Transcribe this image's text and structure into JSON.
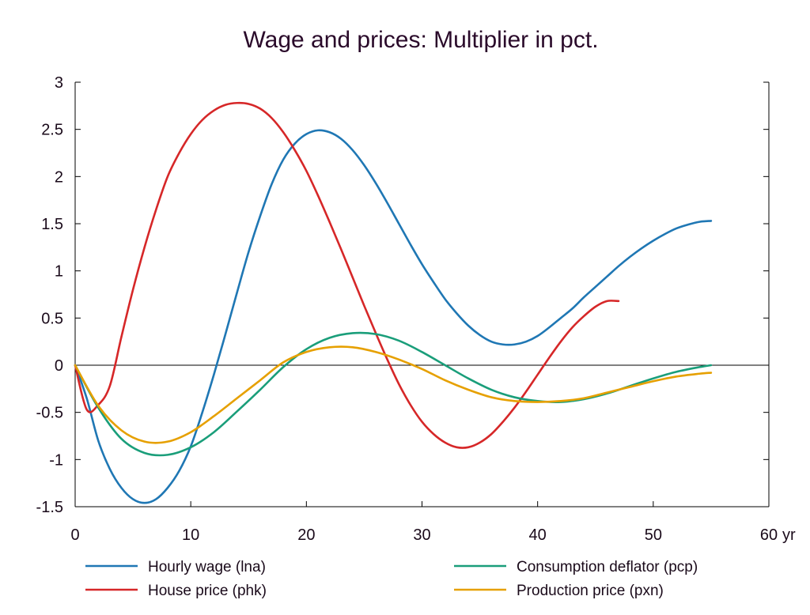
{
  "chart_data": {
    "type": "line",
    "title": "Wage and prices: Multiplier in pct.",
    "xlabel": "",
    "ylabel": "",
    "x_unit_label": "yr",
    "xlim": [
      0,
      60
    ],
    "ylim": [
      -1.5,
      3
    ],
    "x_ticks": [
      "0",
      "10",
      "20",
      "30",
      "40",
      "50",
      "60"
    ],
    "y_ticks": [
      "3",
      "2.5",
      "2",
      "1.5",
      "1",
      "0.5",
      "0",
      "-0.5",
      "-1",
      "-1.5"
    ],
    "grid": false,
    "legend_position": "bottom",
    "series": [
      {
        "name": "Hourly wage (lna)",
        "color": "#1f77b4",
        "points": [
          [
            0,
            0
          ],
          [
            1,
            -0.35
          ],
          [
            2,
            -0.8
          ],
          [
            3,
            -1.1
          ],
          [
            4,
            -1.3
          ],
          [
            5,
            -1.42
          ],
          [
            6,
            -1.46
          ],
          [
            7,
            -1.42
          ],
          [
            8,
            -1.3
          ],
          [
            9,
            -1.12
          ],
          [
            10,
            -0.86
          ],
          [
            11,
            -0.5
          ],
          [
            12,
            -0.1
          ],
          [
            13,
            0.33
          ],
          [
            14,
            0.77
          ],
          [
            15,
            1.2
          ],
          [
            16,
            1.58
          ],
          [
            17,
            1.92
          ],
          [
            18,
            2.18
          ],
          [
            19,
            2.35
          ],
          [
            20,
            2.45
          ],
          [
            21,
            2.49
          ],
          [
            22,
            2.47
          ],
          [
            23,
            2.4
          ],
          [
            24,
            2.28
          ],
          [
            25,
            2.12
          ],
          [
            26,
            1.93
          ],
          [
            27,
            1.72
          ],
          [
            28,
            1.5
          ],
          [
            29,
            1.28
          ],
          [
            30,
            1.07
          ],
          [
            31,
            0.88
          ],
          [
            32,
            0.7
          ],
          [
            33,
            0.55
          ],
          [
            34,
            0.42
          ],
          [
            35,
            0.32
          ],
          [
            36,
            0.25
          ],
          [
            37,
            0.22
          ],
          [
            38,
            0.22
          ],
          [
            39,
            0.25
          ],
          [
            40,
            0.31
          ],
          [
            41,
            0.4
          ],
          [
            42,
            0.5
          ],
          [
            43,
            0.6
          ],
          [
            44,
            0.72
          ],
          [
            45,
            0.83
          ],
          [
            46,
            0.94
          ],
          [
            47,
            1.05
          ],
          [
            48,
            1.15
          ],
          [
            49,
            1.24
          ],
          [
            50,
            1.32
          ],
          [
            51,
            1.39
          ],
          [
            52,
            1.45
          ],
          [
            53,
            1.49
          ],
          [
            54,
            1.52
          ],
          [
            55,
            1.53
          ]
        ]
      },
      {
        "name": "House price (phk)",
        "color": "#d62728",
        "points": [
          [
            0,
            0
          ],
          [
            1,
            -0.47
          ],
          [
            2,
            -0.42
          ],
          [
            3,
            -0.22
          ],
          [
            4,
            0.3
          ],
          [
            5,
            0.8
          ],
          [
            6,
            1.25
          ],
          [
            7,
            1.65
          ],
          [
            8,
            2.0
          ],
          [
            9,
            2.25
          ],
          [
            10,
            2.45
          ],
          [
            11,
            2.6
          ],
          [
            12,
            2.7
          ],
          [
            13,
            2.76
          ],
          [
            14,
            2.78
          ],
          [
            15,
            2.77
          ],
          [
            16,
            2.72
          ],
          [
            17,
            2.62
          ],
          [
            18,
            2.47
          ],
          [
            19,
            2.28
          ],
          [
            20,
            2.06
          ],
          [
            21,
            1.8
          ],
          [
            22,
            1.52
          ],
          [
            23,
            1.23
          ],
          [
            24,
            0.93
          ],
          [
            25,
            0.63
          ],
          [
            26,
            0.34
          ],
          [
            27,
            0.06
          ],
          [
            28,
            -0.2
          ],
          [
            29,
            -0.42
          ],
          [
            30,
            -0.6
          ],
          [
            31,
            -0.73
          ],
          [
            32,
            -0.82
          ],
          [
            33,
            -0.87
          ],
          [
            34,
            -0.87
          ],
          [
            35,
            -0.82
          ],
          [
            36,
            -0.73
          ],
          [
            37,
            -0.6
          ],
          [
            38,
            -0.45
          ],
          [
            39,
            -0.28
          ],
          [
            40,
            -0.1
          ],
          [
            41,
            0.08
          ],
          [
            42,
            0.25
          ],
          [
            43,
            0.4
          ],
          [
            44,
            0.52
          ],
          [
            45,
            0.62
          ],
          [
            46,
            0.68
          ],
          [
            47,
            0.68
          ]
        ]
      },
      {
        "name": "Consumption deflator (pcp)",
        "color": "#1a9e7a",
        "points": [
          [
            0,
            0
          ],
          [
            2,
            -0.45
          ],
          [
            4,
            -0.78
          ],
          [
            6,
            -0.93
          ],
          [
            8,
            -0.95
          ],
          [
            10,
            -0.87
          ],
          [
            12,
            -0.71
          ],
          [
            14,
            -0.49
          ],
          [
            16,
            -0.26
          ],
          [
            18,
            -0.02
          ],
          [
            20,
            0.17
          ],
          [
            22,
            0.29
          ],
          [
            24,
            0.34
          ],
          [
            26,
            0.33
          ],
          [
            28,
            0.26
          ],
          [
            30,
            0.14
          ],
          [
            32,
            0.0
          ],
          [
            34,
            -0.14
          ],
          [
            36,
            -0.26
          ],
          [
            38,
            -0.34
          ],
          [
            40,
            -0.38
          ],
          [
            42,
            -0.39
          ],
          [
            44,
            -0.36
          ],
          [
            46,
            -0.3
          ],
          [
            48,
            -0.22
          ],
          [
            50,
            -0.14
          ],
          [
            52,
            -0.07
          ],
          [
            54,
            -0.02
          ],
          [
            55,
            0.0
          ]
        ]
      },
      {
        "name": "Production price (pxn)",
        "color": "#e6a000",
        "points": [
          [
            0,
            0
          ],
          [
            2,
            -0.43
          ],
          [
            4,
            -0.69
          ],
          [
            6,
            -0.81
          ],
          [
            8,
            -0.81
          ],
          [
            10,
            -0.71
          ],
          [
            12,
            -0.54
          ],
          [
            14,
            -0.35
          ],
          [
            16,
            -0.16
          ],
          [
            18,
            0.03
          ],
          [
            20,
            0.14
          ],
          [
            22,
            0.19
          ],
          [
            24,
            0.19
          ],
          [
            26,
            0.14
          ],
          [
            28,
            0.06
          ],
          [
            30,
            -0.04
          ],
          [
            32,
            -0.16
          ],
          [
            34,
            -0.26
          ],
          [
            36,
            -0.34
          ],
          [
            38,
            -0.38
          ],
          [
            40,
            -0.39
          ],
          [
            42,
            -0.38
          ],
          [
            44,
            -0.35
          ],
          [
            46,
            -0.29
          ],
          [
            48,
            -0.23
          ],
          [
            50,
            -0.17
          ],
          [
            52,
            -0.12
          ],
          [
            54,
            -0.09
          ],
          [
            55,
            -0.08
          ]
        ]
      }
    ]
  }
}
